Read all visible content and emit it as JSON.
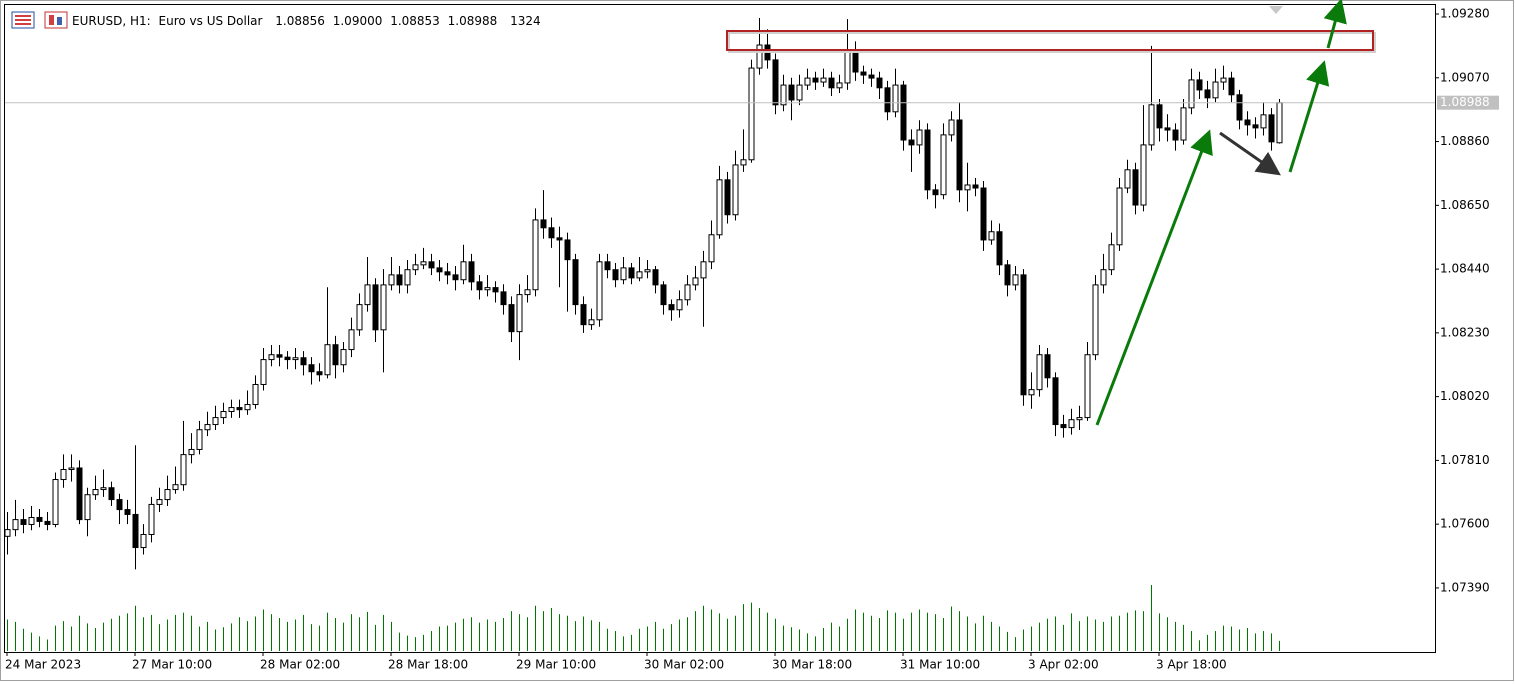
{
  "chart_data": {
    "type": "candlestick",
    "header": {
      "symbol": "EURUSD, H1:",
      "description": "Euro vs US Dollar",
      "ohlc_labels": [
        "1.08856",
        "1.09000",
        "1.08853",
        "1.08988"
      ]
    },
    "categories": [
      "24 Mar 2023",
      null,
      null,
      null,
      null,
      null,
      null,
      null,
      null,
      null,
      null,
      null,
      null,
      null,
      null,
      null,
      "27 Mar 10:00",
      null,
      null,
      null,
      null,
      null,
      null,
      null,
      null,
      null,
      null,
      null,
      null,
      null,
      null,
      null,
      "28 Mar 02:00",
      null,
      null,
      null,
      null,
      null,
      null,
      null,
      null,
      null,
      null,
      null,
      null,
      null,
      null,
      null,
      "28 Mar 18:00",
      null,
      null,
      null,
      null,
      null,
      null,
      null,
      null,
      null,
      null,
      null,
      null,
      null,
      null,
      null,
      "29 Mar 10:00",
      null,
      null,
      null,
      null,
      null,
      null,
      null,
      null,
      null,
      null,
      null,
      null,
      null,
      null,
      null,
      "30 Mar 02:00",
      null,
      null,
      null,
      null,
      null,
      null,
      null,
      null,
      null,
      null,
      null,
      null,
      null,
      null,
      null,
      "30 Mar 18:00",
      null,
      null,
      null,
      null,
      null,
      null,
      null,
      null,
      null,
      null,
      null,
      null,
      null,
      null,
      null,
      "31 Mar 10:00",
      null,
      null,
      null,
      null,
      null,
      null,
      null,
      null,
      null,
      null,
      null,
      null,
      null,
      null,
      null,
      "3 Apr 02:00",
      null,
      null,
      null,
      null,
      null,
      null,
      null,
      null,
      null,
      null,
      null,
      null,
      null,
      null,
      null,
      "3 Apr 18:00",
      null,
      null,
      null,
      null,
      null,
      null,
      null,
      null,
      null,
      null,
      null,
      null,
      null,
      null,
      null
    ],
    "ohlc": [
      [
        1.0756,
        1.0764,
        1.075,
        1.07582
      ],
      [
        1.07582,
        1.0768,
        1.0756,
        1.07615
      ],
      [
        1.07615,
        1.0765,
        1.0757,
        1.07599
      ],
      [
        1.07599,
        1.0766,
        1.0758,
        1.07622
      ],
      [
        1.07622,
        1.0765,
        1.0759,
        1.07609
      ],
      [
        1.07609,
        1.0764,
        1.0758,
        1.07599
      ],
      [
        1.07599,
        1.0777,
        1.0759,
        1.07747
      ],
      [
        1.07747,
        1.0783,
        1.0772,
        1.0778
      ],
      [
        1.0778,
        1.0783,
        1.0774,
        1.07785
      ],
      [
        1.07785,
        1.0781,
        1.076,
        1.07615
      ],
      [
        1.07615,
        1.0772,
        1.0756,
        1.07697
      ],
      [
        1.07697,
        1.0776,
        1.0768,
        1.07714
      ],
      [
        1.07714,
        1.0778,
        1.0769,
        1.0772
      ],
      [
        1.0772,
        1.0774,
        1.0766,
        1.07681
      ],
      [
        1.07681,
        1.077,
        1.076,
        1.07648
      ],
      [
        1.07648,
        1.0768,
        1.076,
        1.07632
      ],
      [
        1.07632,
        1.0786,
        1.07451,
        1.07523
      ],
      [
        1.07523,
        1.076,
        1.075,
        1.07566
      ],
      [
        1.07566,
        1.0769,
        1.0754,
        1.07665
      ],
      [
        1.07665,
        1.0772,
        1.0764,
        1.07681
      ],
      [
        1.07681,
        1.0776,
        1.0766,
        1.07714
      ],
      [
        1.07714,
        1.0779,
        1.077,
        1.0773
      ],
      [
        1.0773,
        1.0794,
        1.0771,
        1.07829
      ],
      [
        1.07829,
        1.079,
        1.078,
        1.07846
      ],
      [
        1.07846,
        1.0794,
        1.0783,
        1.07911
      ],
      [
        1.07911,
        1.0797,
        1.0789,
        1.07928
      ],
      [
        1.07928,
        1.0799,
        1.0791,
        1.07951
      ],
      [
        1.07951,
        1.08,
        1.0793,
        1.07971
      ],
      [
        1.07971,
        1.0801,
        1.0795,
        1.07984
      ],
      [
        1.07984,
        1.0801,
        1.0795,
        1.07977
      ],
      [
        1.07977,
        1.0804,
        1.0796,
        1.07994
      ],
      [
        1.07994,
        1.0809,
        1.0798,
        1.0806
      ],
      [
        1.0806,
        1.0818,
        1.0804,
        1.08142
      ],
      [
        1.08142,
        1.0819,
        1.0812,
        1.08158
      ],
      [
        1.08158,
        1.0819,
        1.0812,
        1.0815
      ],
      [
        1.0815,
        1.0817,
        1.0811,
        1.08142
      ],
      [
        1.08142,
        1.0818,
        1.0811,
        1.08148
      ],
      [
        1.08148,
        1.0817,
        1.0809,
        1.08125
      ],
      [
        1.08125,
        1.0815,
        1.0806,
        1.08102
      ],
      [
        1.08102,
        1.0813,
        1.0807,
        1.08092
      ],
      [
        1.08092,
        1.0838,
        1.0808,
        1.08191
      ],
      [
        1.08191,
        1.0822,
        1.0808,
        1.08125
      ],
      [
        1.08125,
        1.082,
        1.081,
        1.08175
      ],
      [
        1.08175,
        1.0828,
        1.0815,
        1.0824
      ],
      [
        1.0824,
        1.0836,
        1.0822,
        1.08323
      ],
      [
        1.08323,
        1.0848,
        1.083,
        1.08388
      ],
      [
        1.08388,
        1.0841,
        1.082,
        1.0824
      ],
      [
        1.0824,
        1.0844,
        1.081,
        1.08388
      ],
      [
        1.08388,
        1.0848,
        1.0837,
        1.08421
      ],
      [
        1.08421,
        1.0845,
        1.0836,
        1.08388
      ],
      [
        1.08388,
        1.0847,
        1.0836,
        1.08438
      ],
      [
        1.08438,
        1.0849,
        1.0842,
        1.08454
      ],
      [
        1.08454,
        1.0851,
        1.0844,
        1.08464
      ],
      [
        1.08464,
        1.0849,
        1.0842,
        1.08444
      ],
      [
        1.08444,
        1.0847,
        1.084,
        1.08431
      ],
      [
        1.08431,
        1.0846,
        1.0839,
        1.08421
      ],
      [
        1.08421,
        1.0845,
        1.0837,
        1.08405
      ],
      [
        1.08405,
        1.0852,
        1.0839,
        1.08464
      ],
      [
        1.08464,
        1.0849,
        1.0837,
        1.08398
      ],
      [
        1.08398,
        1.0842,
        1.0834,
        1.08372
      ],
      [
        1.08372,
        1.0842,
        1.0835,
        1.08379
      ],
      [
        1.08379,
        1.084,
        1.0833,
        1.08365
      ],
      [
        1.08365,
        1.0839,
        1.0829,
        1.08323
      ],
      [
        1.08323,
        1.0835,
        1.082,
        1.08234
      ],
      [
        1.08234,
        1.0839,
        1.0814,
        1.08356
      ],
      [
        1.08356,
        1.0842,
        1.0833,
        1.08372
      ],
      [
        1.08372,
        1.0864,
        1.0835,
        1.08602
      ],
      [
        1.08602,
        1.087,
        1.0854,
        1.08576
      ],
      [
        1.08576,
        1.0861,
        1.0851,
        1.08543
      ],
      [
        1.08543,
        1.0858,
        1.0838,
        1.08536
      ],
      [
        1.08536,
        1.0856,
        1.083,
        1.08471
      ],
      [
        1.08471,
        1.0849,
        1.0829,
        1.08323
      ],
      [
        1.08323,
        1.0835,
        1.0823,
        1.08257
      ],
      [
        1.08257,
        1.0831,
        1.0824,
        1.08273
      ],
      [
        1.08273,
        1.0849,
        1.0825,
        1.08464
      ],
      [
        1.08464,
        1.0849,
        1.0841,
        1.08438
      ],
      [
        1.08438,
        1.0846,
        1.0838,
        1.08405
      ],
      [
        1.08405,
        1.0848,
        1.0839,
        1.08444
      ],
      [
        1.08444,
        1.0846,
        1.0839,
        1.08411
      ],
      [
        1.08411,
        1.0848,
        1.084,
        1.08431
      ],
      [
        1.08431,
        1.0847,
        1.0841,
        1.08438
      ],
      [
        1.08438,
        1.0845,
        1.0836,
        1.08388
      ],
      [
        1.08388,
        1.084,
        1.0829,
        1.08323
      ],
      [
        1.08323,
        1.0834,
        1.0827,
        1.08306
      ],
      [
        1.08306,
        1.0837,
        1.0828,
        1.08339
      ],
      [
        1.08339,
        1.0842,
        1.0832,
        1.08388
      ],
      [
        1.08388,
        1.0845,
        1.0837,
        1.08411
      ],
      [
        1.08411,
        1.085,
        1.0825,
        1.08464
      ],
      [
        1.08464,
        1.086,
        1.0844,
        1.08553
      ],
      [
        1.08553,
        1.0878,
        1.0854,
        1.08734
      ],
      [
        1.08734,
        1.0876,
        1.0859,
        1.08619
      ],
      [
        1.08619,
        1.0883,
        1.086,
        1.08783
      ],
      [
        1.08783,
        1.089,
        1.0876,
        1.088
      ],
      [
        1.088,
        1.0913,
        1.0879,
        1.09102
      ],
      [
        1.09102,
        1.09267,
        1.0908,
        1.09178
      ],
      [
        1.09178,
        1.0923,
        1.091,
        1.09129
      ],
      [
        1.09129,
        1.0915,
        1.0895,
        1.08981
      ],
      [
        1.08981,
        1.0908,
        1.0896,
        1.09046
      ],
      [
        1.09046,
        1.0907,
        1.0893,
        1.08997
      ],
      [
        1.08997,
        1.0908,
        1.0898,
        1.09046
      ],
      [
        1.09046,
        1.091,
        1.0903,
        1.09069
      ],
      [
        1.09069,
        1.0909,
        1.0903,
        1.09056
      ],
      [
        1.09056,
        1.091,
        1.0904,
        1.09069
      ],
      [
        1.09069,
        1.0909,
        1.0901,
        1.09037
      ],
      [
        1.09037,
        1.0908,
        1.0902,
        1.09053
      ],
      [
        1.09053,
        1.09263,
        1.0903,
        1.09162
      ],
      [
        1.09162,
        1.0919,
        1.0906,
        1.09089
      ],
      [
        1.09089,
        1.0911,
        1.0905,
        1.09079
      ],
      [
        1.09079,
        1.091,
        1.0904,
        1.09069
      ],
      [
        1.09069,
        1.0909,
        1.09,
        1.09037
      ],
      [
        1.09037,
        1.0906,
        1.0893,
        1.08958
      ],
      [
        1.08958,
        1.091,
        1.0894,
        1.09046
      ],
      [
        1.09046,
        1.0906,
        1.0883,
        1.08865
      ],
      [
        1.08865,
        1.089,
        1.0876,
        1.08849
      ],
      [
        1.08849,
        1.0893,
        1.0882,
        1.08898
      ],
      [
        1.08898,
        1.0892,
        1.0867,
        1.08701
      ],
      [
        1.08701,
        1.0872,
        1.0864,
        1.08685
      ],
      [
        1.08685,
        1.0892,
        1.0867,
        1.08882
      ],
      [
        1.08882,
        1.0896,
        1.0886,
        1.08931
      ],
      [
        1.08931,
        1.0899,
        1.0866,
        1.08701
      ],
      [
        1.08701,
        1.0879,
        1.0863,
        1.08717
      ],
      [
        1.08717,
        1.0874,
        1.0868,
        1.08707
      ],
      [
        1.08707,
        1.0873,
        1.085,
        1.08536
      ],
      [
        1.08536,
        1.086,
        1.0852,
        1.08563
      ],
      [
        1.08563,
        1.0859,
        1.0842,
        1.08454
      ],
      [
        1.08454,
        1.0847,
        1.0835,
        1.08388
      ],
      [
        1.08388,
        1.0845,
        1.0837,
        1.08421
      ],
      [
        1.08421,
        1.0844,
        1.0799,
        1.08026
      ],
      [
        1.08026,
        1.081,
        1.0798,
        1.08043
      ],
      [
        1.08043,
        1.0819,
        1.0802,
        1.08158
      ],
      [
        1.08158,
        1.0818,
        1.0805,
        1.08082
      ],
      [
        1.08082,
        1.081,
        1.0789,
        1.07928
      ],
      [
        1.07928,
        1.0796,
        1.07885,
        1.07918
      ],
      [
        1.07918,
        1.0798,
        1.07895,
        1.07944
      ],
      [
        1.07944,
        1.0799,
        1.0791,
        1.07951
      ],
      [
        1.07951,
        1.082,
        1.0794,
        1.08158
      ],
      [
        1.08158,
        1.0842,
        1.0814,
        1.08388
      ],
      [
        1.08388,
        1.0849,
        1.0836,
        1.08438
      ],
      [
        1.08438,
        1.0856,
        1.0842,
        1.0852
      ],
      [
        1.0852,
        1.0874,
        1.085,
        1.08707
      ],
      [
        1.08707,
        1.088,
        1.0869,
        1.08767
      ],
      [
        1.08767,
        1.0879,
        1.0862,
        1.08651
      ],
      [
        1.08651,
        1.0898,
        1.0863,
        1.08849
      ],
      [
        1.08849,
        1.09175,
        1.0883,
        1.08981
      ],
      [
        1.08981,
        1.09,
        1.0886,
        1.08905
      ],
      [
        1.08905,
        1.0895,
        1.0886,
        1.08898
      ],
      [
        1.08898,
        1.0892,
        1.0883,
        1.08865
      ],
      [
        1.08865,
        1.09,
        1.0885,
        1.08971
      ],
      [
        1.08971,
        1.091,
        1.0895,
        1.09063
      ],
      [
        1.09063,
        1.0909,
        1.09,
        1.0903
      ],
      [
        1.0903,
        1.0906,
        1.0897,
        1.09004
      ],
      [
        1.09004,
        1.091,
        1.0899,
        1.09056
      ],
      [
        1.09056,
        1.0911,
        1.0903,
        1.09069
      ],
      [
        1.09069,
        1.0909,
        1.0899,
        1.09014
      ],
      [
        1.09014,
        1.0903,
        1.089,
        1.08931
      ],
      [
        1.08931,
        1.0896,
        1.0888,
        1.08915
      ],
      [
        1.08915,
        1.0894,
        1.0887,
        1.08905
      ],
      [
        1.08905,
        1.0899,
        1.0888,
        1.08948
      ],
      [
        1.08948,
        1.0897,
        1.0883,
        1.08859
      ],
      [
        1.08856,
        1.09,
        1.08853,
        1.08988
      ]
    ],
    "volumes": [
      4100,
      3800,
      2900,
      2400,
      1900,
      1500,
      3300,
      3900,
      3200,
      4600,
      3600,
      3000,
      3700,
      4200,
      4600,
      4900,
      5900,
      4400,
      4700,
      3500,
      4100,
      4700,
      5000,
      4600,
      3200,
      3800,
      2800,
      3100,
      3600,
      4400,
      3900,
      4500,
      5400,
      4800,
      4300,
      3800,
      4100,
      4700,
      3500,
      3300,
      5000,
      4300,
      3700,
      4800,
      4400,
      5100,
      3400,
      4700,
      3800,
      2400,
      2000,
      1800,
      2100,
      2600,
      3200,
      3300,
      3700,
      4200,
      4400,
      3700,
      4100,
      3800,
      4300,
      5200,
      4800,
      4400,
      5900,
      5200,
      5600,
      4800,
      4600,
      3900,
      4500,
      4000,
      3800,
      2900,
      2600,
      1900,
      2100,
      2900,
      3200,
      3800,
      2900,
      3500,
      4100,
      4400,
      5200,
      5900,
      5400,
      4900,
      4200,
      4600,
      6100,
      6300,
      5600,
      5000,
      4200,
      3300,
      3100,
      2800,
      2300,
      1900,
      3000,
      3700,
      3200,
      4200,
      5400,
      5000,
      4600,
      4300,
      5300,
      5000,
      4200,
      5000,
      5400,
      5000,
      4800,
      4300,
      5800,
      5200,
      4500,
      3600,
      4600,
      3800,
      3200,
      2500,
      1800,
      2800,
      3200,
      3700,
      4200,
      4500,
      3400,
      4900,
      3900,
      4500,
      4100,
      3800,
      4500,
      4600,
      5000,
      5300,
      5200,
      8600,
      4900,
      4400,
      3800,
      3400,
      2600,
      1400,
      2100,
      2600,
      3300,
      3200,
      2800,
      3000,
      2300,
      2600,
      2300,
      1324
    ],
    "ylim": [
      1.09313,
      1.07179
    ],
    "yticks": [
      {
        "value": 1.0928,
        "label": "1.09280"
      },
      {
        "value": 1.0907,
        "label": "1.09070"
      },
      {
        "value": 1.0886,
        "label": "1.08860"
      },
      {
        "value": 1.0865,
        "label": "1.08650"
      },
      {
        "value": 1.0844,
        "label": "1.08440"
      },
      {
        "value": 1.0823,
        "label": "1.08230"
      },
      {
        "value": 1.0802,
        "label": "1.08020"
      },
      {
        "value": 1.0781,
        "label": "1.07810"
      },
      {
        "value": 1.076,
        "label": "1.07600"
      },
      {
        "value": 1.0739,
        "label": "1.07390"
      }
    ],
    "grid": false,
    "volume_color": "#007800",
    "up_color": "#ffffff",
    "down_color": "#000000"
  }
}
